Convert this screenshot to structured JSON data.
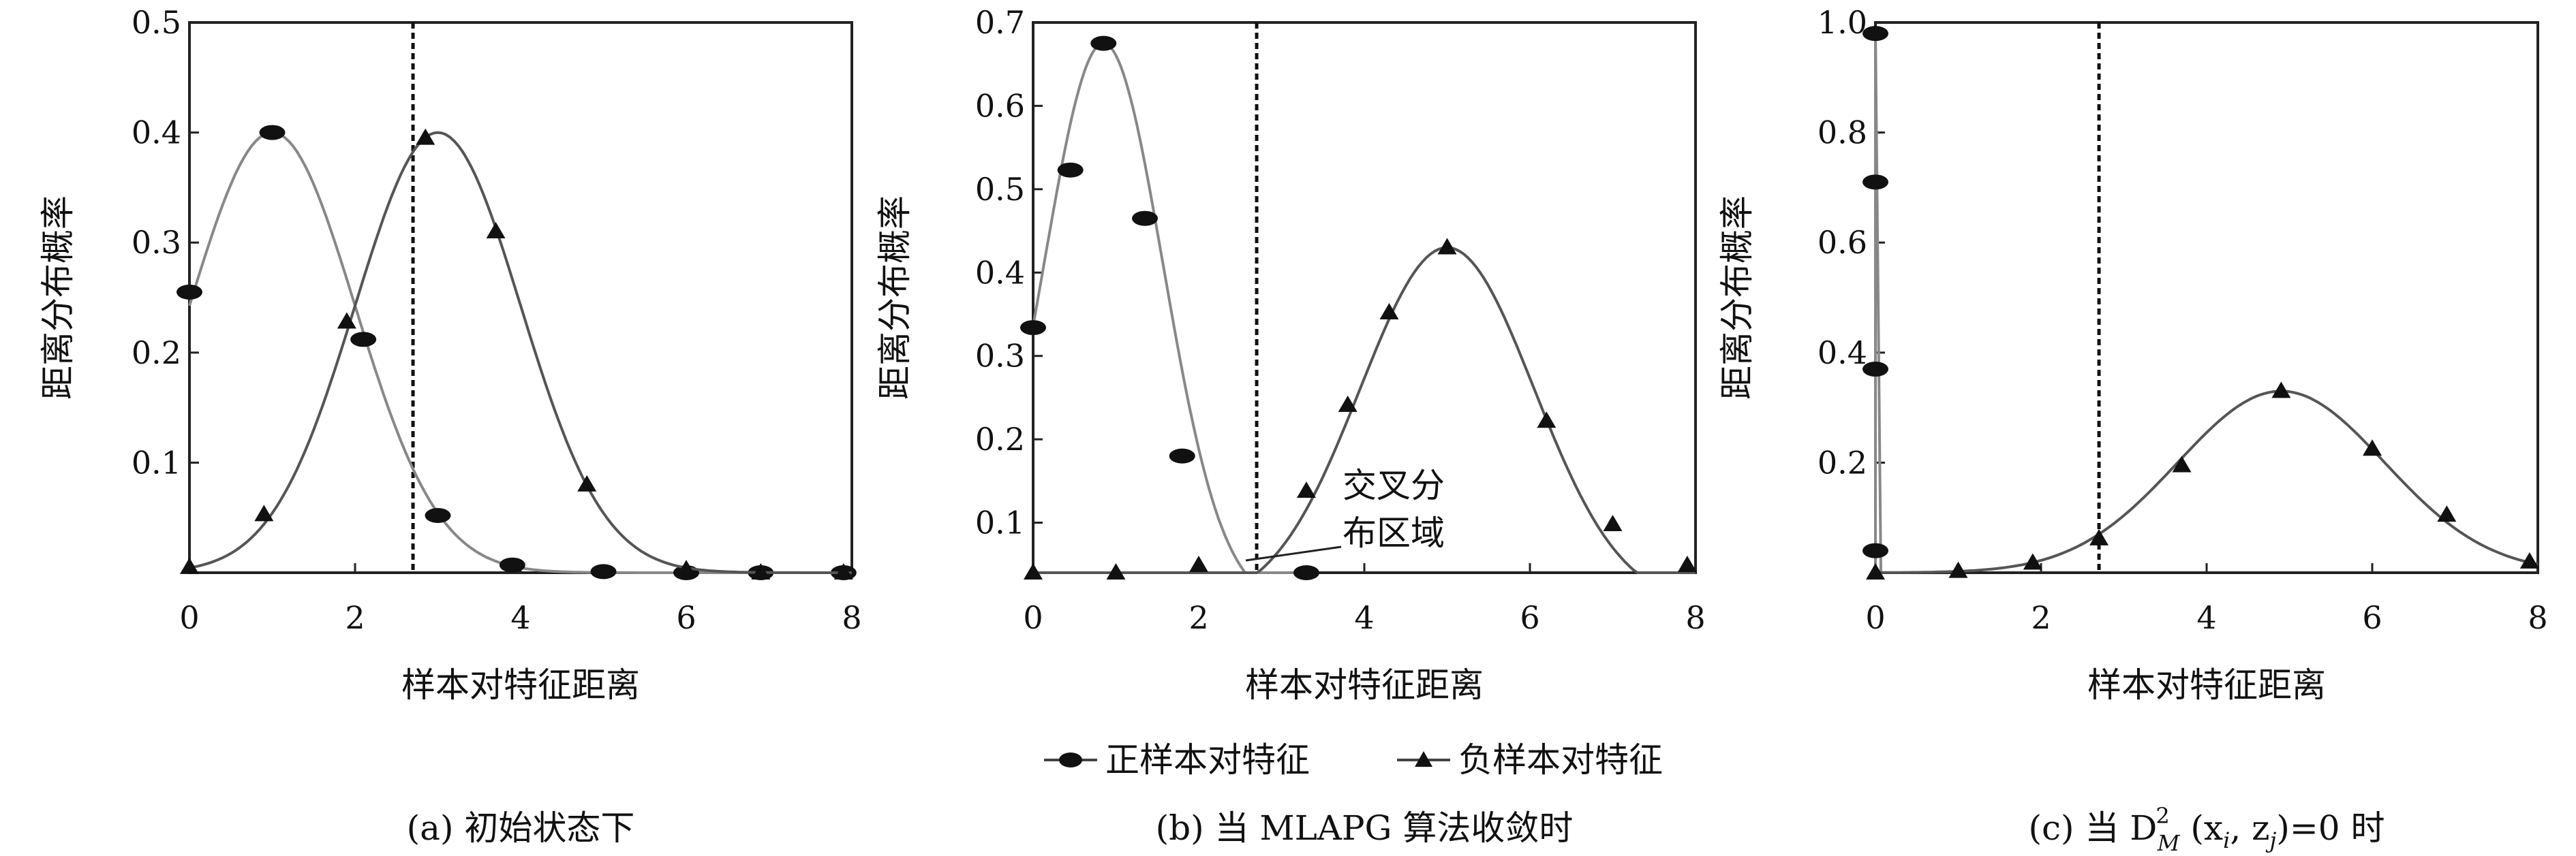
{
  "legend": {
    "positive_label": "正样本对特征",
    "negative_label": "负样本对特征"
  },
  "chart_data": [
    {
      "type": "line",
      "caption": "(a) 初始状态下",
      "xlabel": "样本对特征距离",
      "ylabel": "距离分布概率",
      "xlim": [
        0,
        8
      ],
      "ylim": [
        0,
        0.5
      ],
      "x_ticks": [
        0,
        2,
        4,
        6,
        8
      ],
      "y_ticks": [
        0.1,
        0.2,
        0.3,
        0.4,
        0.5
      ],
      "vline_x": 2.7,
      "series": [
        {
          "name": "正样本对特征",
          "marker": "ellipse",
          "curve": {
            "shape": "gaussian",
            "mu": 1.0,
            "sigma": 1.0,
            "amp": 0.4,
            "x_start": 0.0,
            "x_end": 8.0
          },
          "x": [
            0.0,
            1.0,
            2.1,
            3.0,
            3.9,
            5.0,
            6.0,
            6.9,
            7.9
          ],
          "y": [
            0.255,
            0.4,
            0.212,
            0.052,
            0.007,
            0.001,
            0.0,
            0.0,
            0.0
          ]
        },
        {
          "name": "负样本对特征",
          "marker": "triangle",
          "curve": {
            "shape": "gaussian",
            "mu": 3.0,
            "sigma": 1.0,
            "amp": 0.4,
            "x_start": 0.0,
            "x_end": 8.0
          },
          "x": [
            0.0,
            0.9,
            1.9,
            2.85,
            3.7,
            4.8,
            6.0,
            6.9,
            7.9
          ],
          "y": [
            0.005,
            0.053,
            0.228,
            0.395,
            0.31,
            0.08,
            0.003,
            0.0,
            0.0
          ]
        }
      ]
    },
    {
      "type": "line",
      "caption": "(b) 当 MLAPG 算法收敛时",
      "xlabel": "样本对特征距离",
      "ylabel": "距离分布概率",
      "xlim": [
        0,
        8
      ],
      "ylim": [
        0.04,
        0.7
      ],
      "x_ticks": [
        0,
        2,
        4,
        6,
        8
      ],
      "y_ticks": [
        0.1,
        0.2,
        0.3,
        0.4,
        0.5,
        0.6,
        0.7
      ],
      "vline_x": 2.7,
      "annotation": [
        "交叉分",
        "布区域"
      ],
      "series": [
        {
          "name": "正样本对特征",
          "marker": "ellipse",
          "curve": {
            "shape": "gaussian",
            "mu": 0.85,
            "sigma": 0.72,
            "amp": 0.675,
            "x_start": 0.0,
            "x_end": 3.3
          },
          "x": [
            0.0,
            0.45,
            0.85,
            1.35,
            1.8,
            3.3
          ],
          "y": [
            0.334,
            0.523,
            0.675,
            0.465,
            0.18,
            0.04
          ]
        },
        {
          "name": "负样本对特征",
          "marker": "triangle",
          "curve": {
            "shape": "gaussian",
            "mu": 5.0,
            "sigma": 1.05,
            "amp": 0.43,
            "x_start": 0.0,
            "x_end": 8.0
          },
          "x": [
            0.0,
            1.0,
            2.0,
            3.3,
            3.8,
            4.3,
            5.0,
            6.2,
            7.0,
            7.9
          ],
          "y": [
            0.04,
            0.04,
            0.049,
            0.138,
            0.241,
            0.352,
            0.43,
            0.222,
            0.098,
            0.049
          ]
        }
      ]
    },
    {
      "type": "line",
      "caption": "(c) 当 D",
      "caption_sup": "2",
      "caption_sub": "M",
      "caption_args": " (x",
      "caption_i": "i",
      "caption_comma": ", z",
      "caption_j": "j",
      "caption_end": ")=0 时",
      "xlabel": "样本对特征距离",
      "ylabel": "距离分布概率",
      "xlim": [
        0,
        8
      ],
      "ylim": [
        0,
        1.0
      ],
      "x_ticks": [
        0,
        2,
        4,
        6,
        8
      ],
      "y_ticks": [
        0.2,
        0.4,
        0.6,
        0.8,
        1.0
      ],
      "vline_x": 2.7,
      "series": [
        {
          "name": "正样本对特征",
          "marker": "ellipse",
          "curve": {
            "shape": "spike",
            "x": 0.0,
            "top": 0.99
          },
          "x": [
            0.0,
            0.0,
            0.0,
            0.0
          ],
          "y": [
            0.98,
            0.71,
            0.37,
            0.04
          ]
        },
        {
          "name": "负样本对特征",
          "marker": "triangle",
          "curve": {
            "shape": "gaussian",
            "mu": 4.9,
            "sigma": 1.25,
            "amp": 0.33,
            "x_start": 0.0,
            "x_end": 8.0
          },
          "x": [
            0.0,
            1.0,
            1.9,
            2.7,
            3.7,
            4.9,
            6.0,
            6.9,
            7.9
          ],
          "y": [
            0.0,
            0.003,
            0.018,
            0.062,
            0.195,
            0.33,
            0.225,
            0.105,
            0.02
          ]
        }
      ]
    }
  ]
}
